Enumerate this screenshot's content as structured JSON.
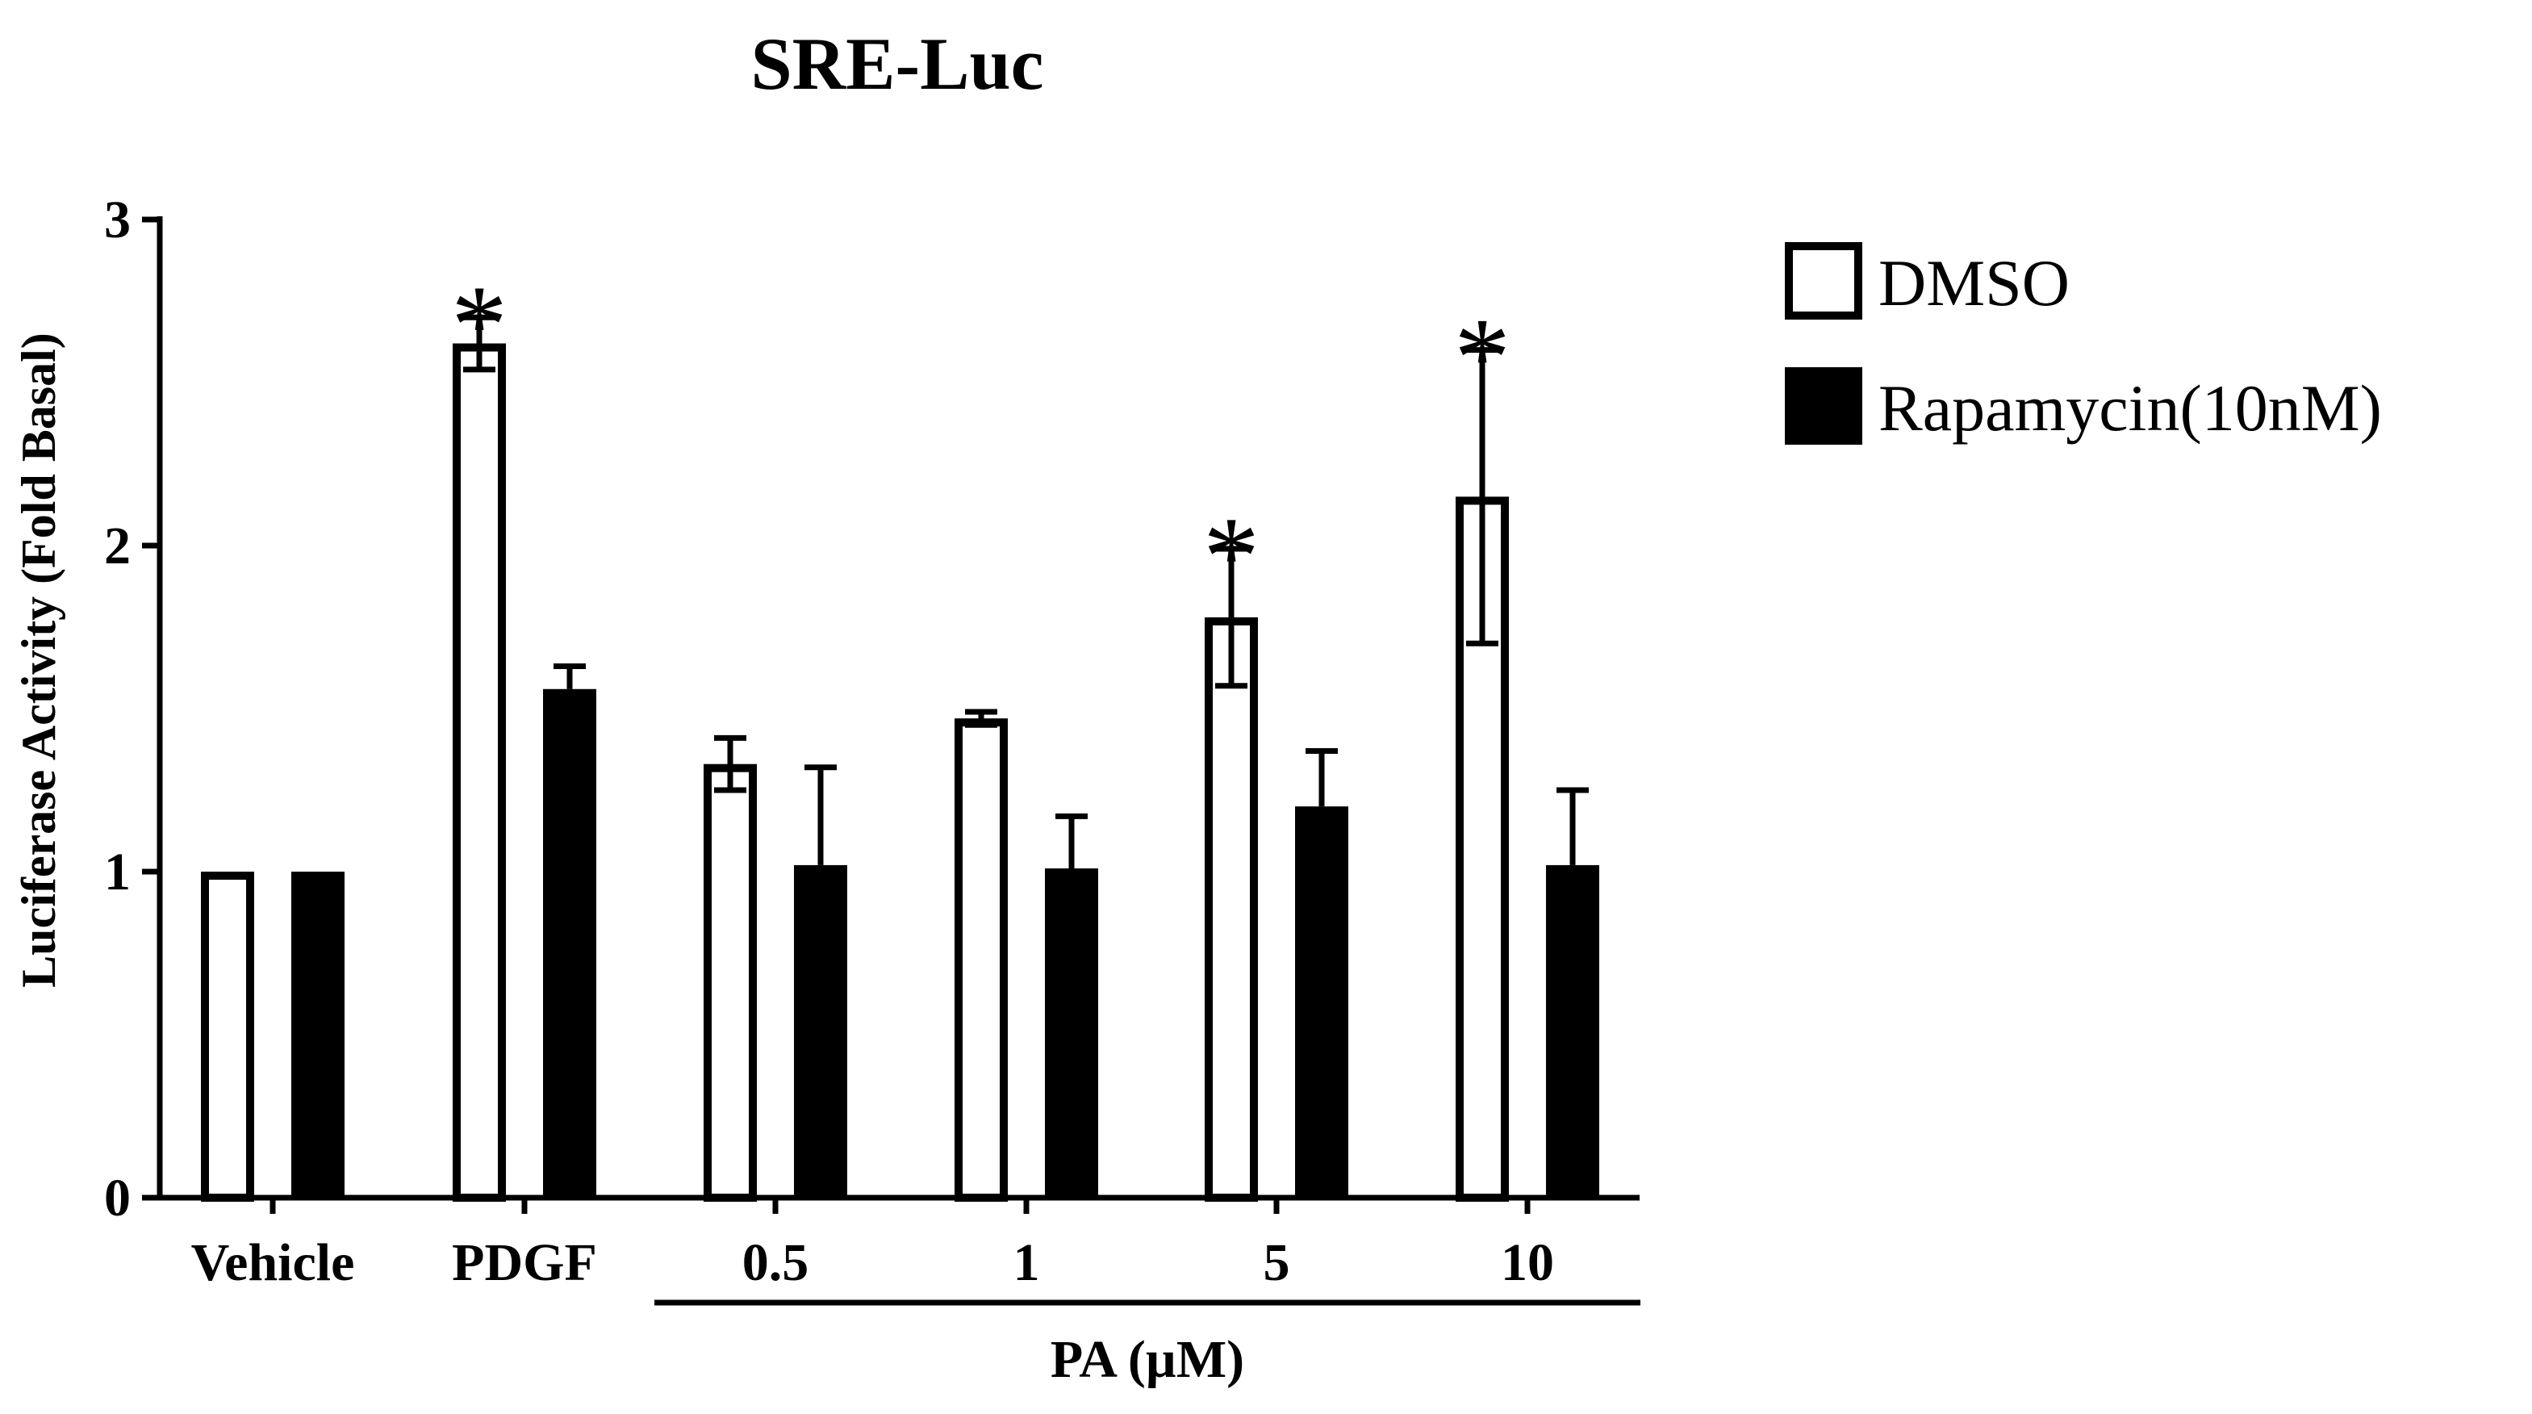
{
  "chart_data": {
    "type": "bar",
    "title": "SRE-Luc",
    "ylabel": "Luciferase Activity  (Fold Basal)",
    "xlabel": "",
    "group_label": "PA (µM)",
    "group_spans_categories": [
      "0.5",
      "1",
      "5",
      "10"
    ],
    "categories": [
      "Vehicle",
      "PDGF",
      "0.5",
      "1",
      "5",
      "10"
    ],
    "ylim": [
      0,
      3
    ],
    "yticks": [
      "0",
      "1",
      "2",
      "3"
    ],
    "grid": false,
    "legend_position": "top-right",
    "series": [
      {
        "name": "DMSO",
        "color": "#ffffff",
        "values": [
          1.0,
          2.62,
          1.33,
          1.47,
          1.78,
          2.15
        ],
        "errors": [
          0.0,
          0.08,
          0.08,
          0.02,
          0.21,
          0.45
        ]
      },
      {
        "name": "Rapamycin(10nM)",
        "color": "#000000",
        "values": [
          1.0,
          1.56,
          1.02,
          1.01,
          1.2,
          1.02
        ],
        "errors": [
          0.0,
          0.07,
          0.3,
          0.16,
          0.17,
          0.23
        ]
      }
    ],
    "significance": [
      {
        "series": "DMSO",
        "category": "PDGF",
        "mark": "*"
      },
      {
        "series": "DMSO",
        "category": "5",
        "mark": "*"
      },
      {
        "series": "DMSO",
        "category": "10",
        "mark": "*"
      }
    ]
  }
}
